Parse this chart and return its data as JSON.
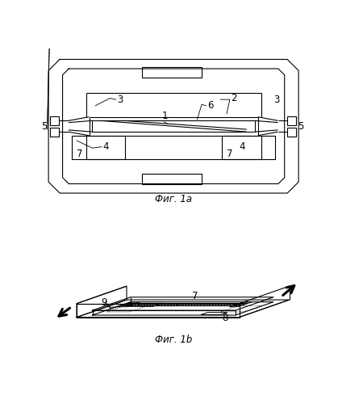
{
  "fig_caption_a": "Фиг. 1a",
  "fig_caption_b": "Фиг. 1b",
  "bg_color": "#ffffff",
  "line_color": "#000000"
}
